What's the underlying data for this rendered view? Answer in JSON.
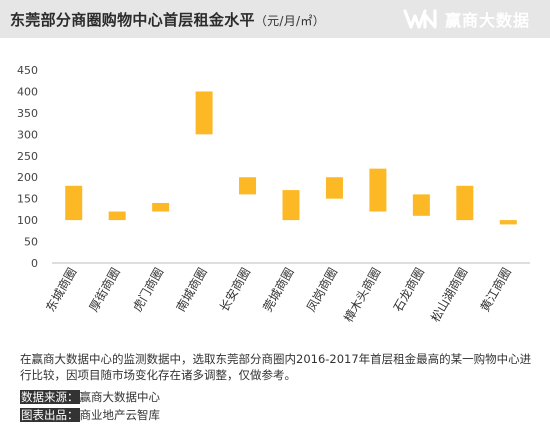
{
  "header": {
    "title": "东莞部分商圈购物中心首层租金水平",
    "unit": "（元/月/㎡）",
    "brand": "赢商大数据"
  },
  "chart_data": {
    "type": "bar",
    "subtype": "floating-range",
    "categories": [
      "东城商圈",
      "厚街商圈",
      "虎门商圈",
      "南城商圈",
      "长安商圈",
      "莞城商圈",
      "凤岗商圈",
      "樟木头商圈",
      "石龙商圈",
      "松山湖商圈",
      "黄江商圈"
    ],
    "ranges": [
      [
        100,
        180
      ],
      [
        100,
        120
      ],
      [
        120,
        140
      ],
      [
        300,
        400
      ],
      [
        160,
        200
      ],
      [
        100,
        170
      ],
      [
        150,
        200
      ],
      [
        120,
        220
      ],
      [
        110,
        160
      ],
      [
        100,
        180
      ],
      [
        90,
        100
      ]
    ],
    "ylim": [
      0,
      450
    ],
    "yticks": [
      0,
      50,
      100,
      150,
      200,
      250,
      300,
      350,
      400,
      450
    ],
    "bar_color": "#FDB826",
    "grid": false
  },
  "note": "在赢商大数据中心的监测数据中，选取东莞部分商圈内2016-2017年首层租金最高的某一购物中心进行比较，因项目随市场变化存在诸多调整，仅做参考。",
  "source": {
    "data_label": "数据来源：",
    "data_value": "赢商大数据中心",
    "chart_label": "图表出品：",
    "chart_value": "商业地产云智库"
  }
}
